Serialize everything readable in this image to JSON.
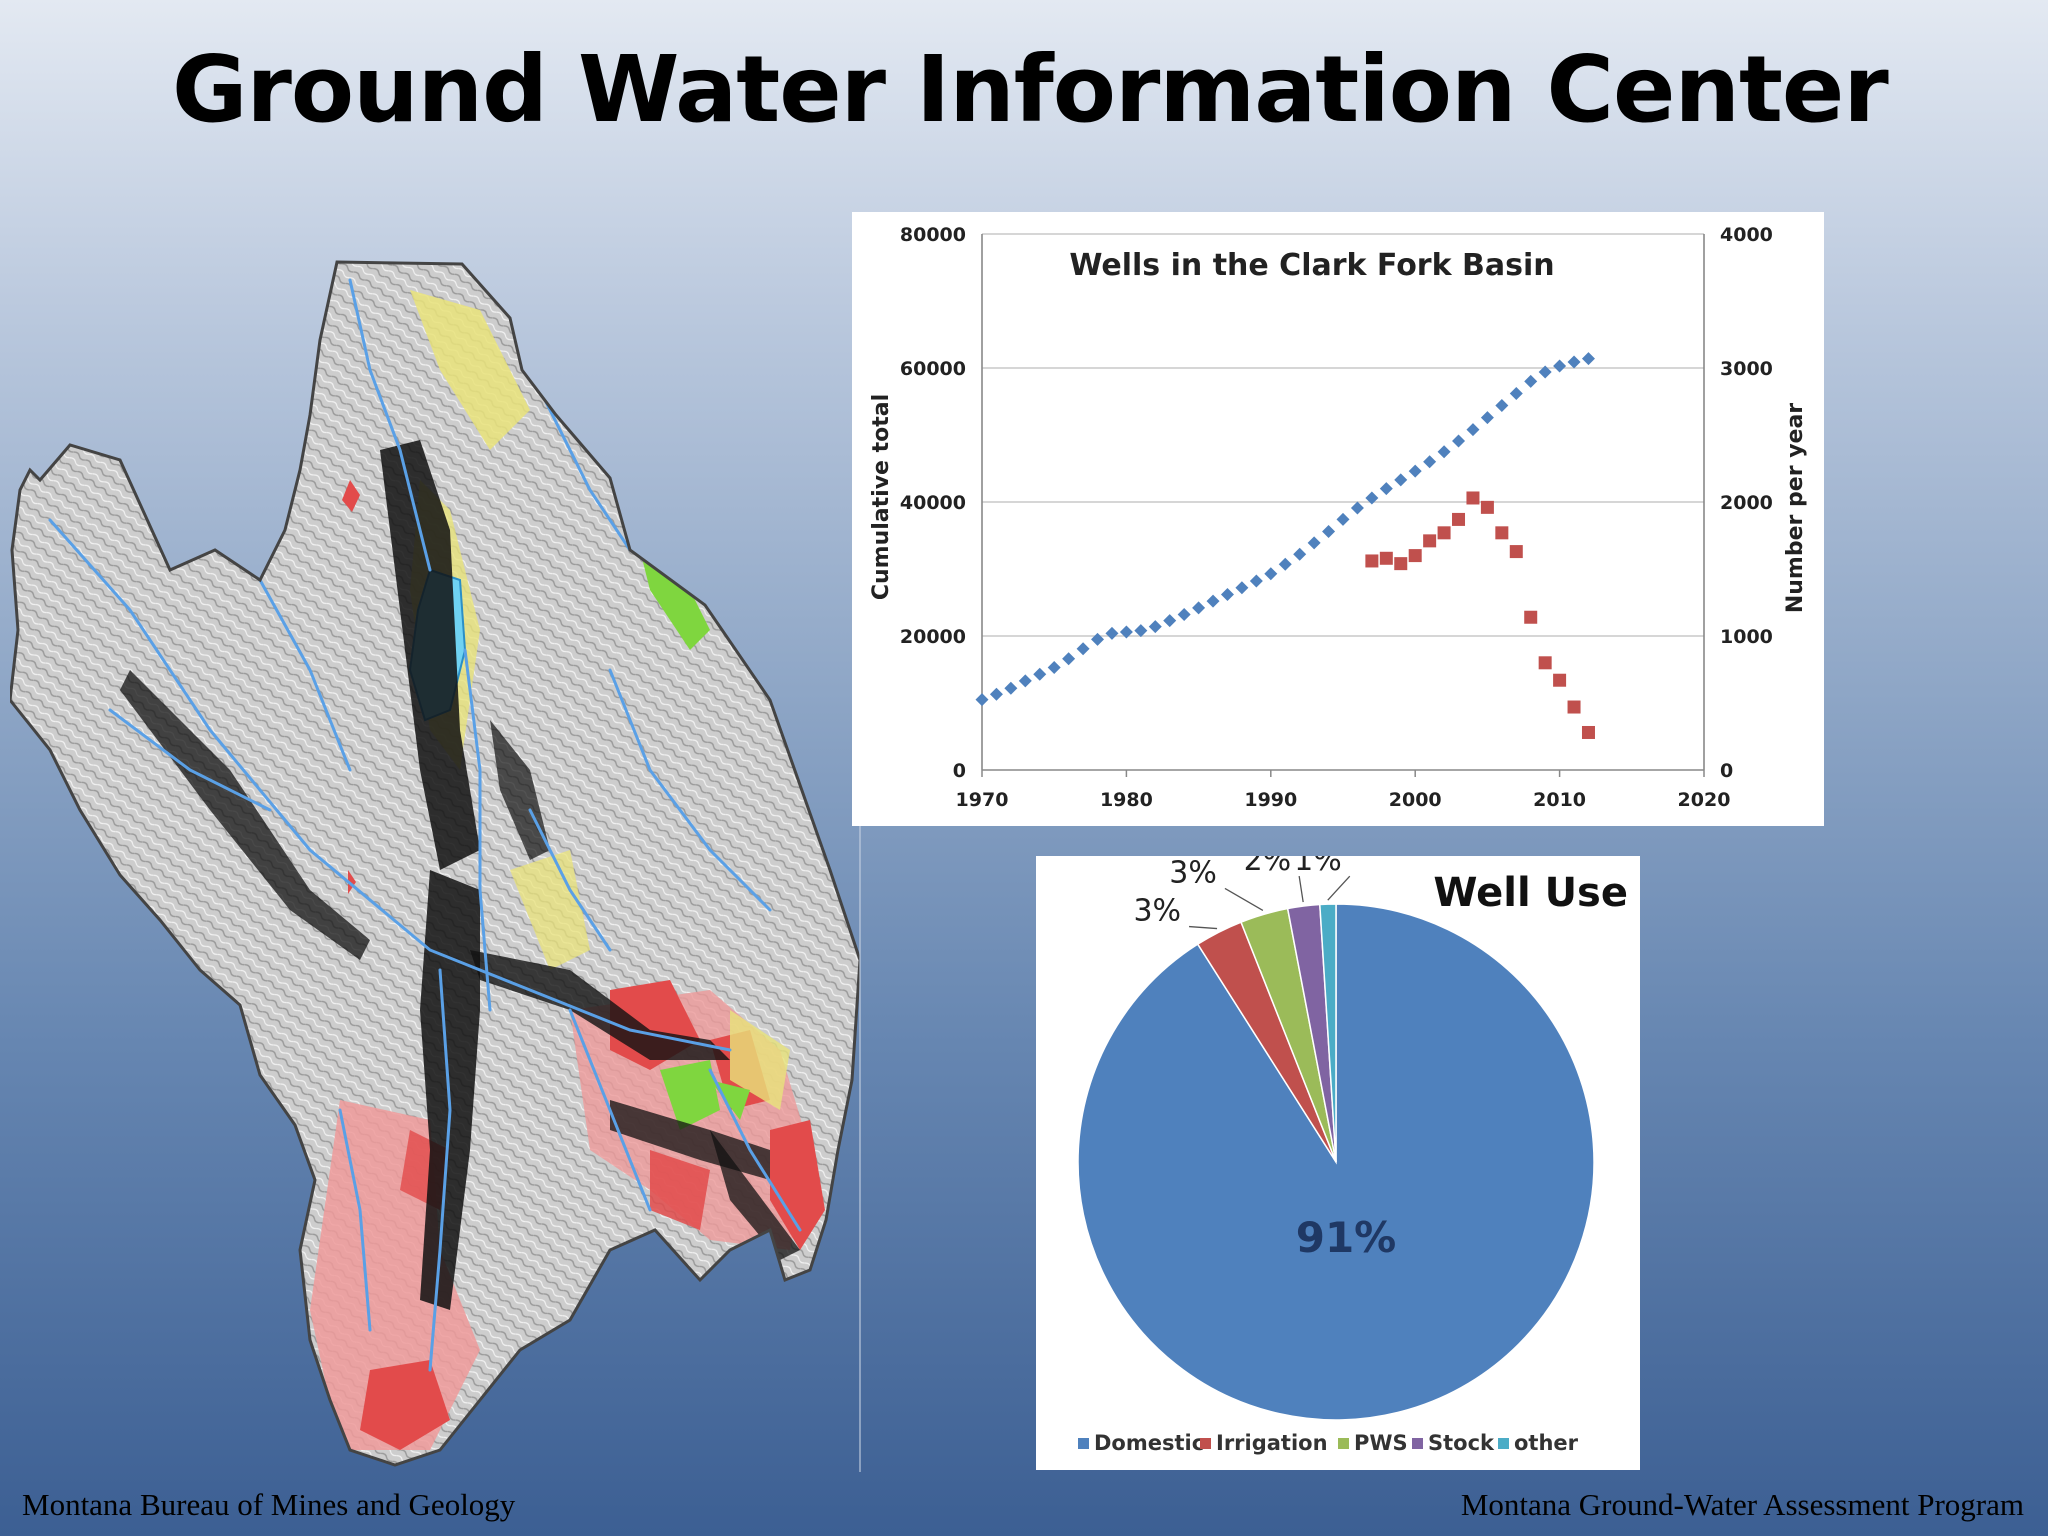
{
  "slide": {
    "title": "Ground Water Information Center",
    "footer_left": "Montana Bureau of Mines and Geology",
    "footer_right": "Montana Ground-Water Assessment Program"
  },
  "map": {
    "icon": "basin-relief-map-icon",
    "colors": {
      "relief": "#c9c9c9",
      "wells": "#000000",
      "lake": "#6fd2f2",
      "streams": "#5aa0e6",
      "zone_yellow": "#e9e37a",
      "zone_red": "#e24b4b",
      "zone_pink": "#ee9a9a",
      "zone_green": "#7fd63f"
    }
  },
  "chart_data": [
    {
      "type": "scatter",
      "title": "Wells in the Clark Fork Basin",
      "xlabel": "",
      "ylabel": "Cumulative total",
      "y2label": "Number per year",
      "xlim": [
        1970,
        2020
      ],
      "ylim": [
        0,
        80000
      ],
      "y2lim": [
        0,
        4000
      ],
      "x_ticks": [
        1970,
        1980,
        1990,
        2000,
        2010,
        2020
      ],
      "y_ticks": [
        0,
        20000,
        40000,
        60000,
        80000
      ],
      "y2_ticks": [
        0,
        1000,
        2000,
        3000,
        4000
      ],
      "grid": true,
      "series": [
        {
          "axis": "left",
          "marker": "diamond",
          "color": "#4f81bd",
          "x": [
            1970,
            1971,
            1972,
            1973,
            1974,
            1975,
            1976,
            1977,
            1978,
            1979,
            1980,
            1981,
            1982,
            1983,
            1984,
            1985,
            1986,
            1987,
            1988,
            1989,
            1990,
            1991,
            1992,
            1993,
            1994,
            1995,
            1996,
            1997,
            1998,
            1999,
            2000,
            2001,
            2002,
            2003,
            2004,
            2005,
            2006,
            2007,
            2008,
            2009,
            2010,
            2011,
            2012
          ],
          "y": [
            10500,
            11300,
            12200,
            13300,
            14300,
            15300,
            16600,
            18100,
            19500,
            20400,
            20600,
            20800,
            21400,
            22300,
            23200,
            24200,
            25200,
            26200,
            27200,
            28200,
            29300,
            30700,
            32200,
            33900,
            35600,
            37400,
            39100,
            40600,
            42000,
            43300,
            44600,
            46000,
            47500,
            49100,
            50800,
            52600,
            54400,
            56200,
            58000,
            59400,
            60300,
            60900,
            61400
          ]
        },
        {
          "axis": "right",
          "marker": "square",
          "color": "#c0504d",
          "x": [
            1997,
            1998,
            1999,
            2000,
            2001,
            2002,
            2003,
            2004,
            2005,
            2006,
            2007,
            2008,
            2009,
            2010,
            2011,
            2012
          ],
          "y": [
            1560,
            1580,
            1540,
            1600,
            1710,
            1770,
            1870,
            2030,
            1960,
            1770,
            1630,
            1140,
            800,
            670,
            470,
            280
          ]
        }
      ]
    },
    {
      "type": "pie",
      "title": "Well Use",
      "legend": "bottom",
      "center_label": "91%",
      "slices": [
        {
          "name": "Domestic",
          "value": 91,
          "label": "",
          "color": "#4f81bd"
        },
        {
          "name": "Irrigation",
          "value": 3,
          "label": "3%",
          "color": "#c0504d"
        },
        {
          "name": "PWS",
          "value": 3,
          "label": "3%",
          "color": "#9bbb59"
        },
        {
          "name": "Stock",
          "value": 2,
          "label": "2%",
          "color": "#8064a2"
        },
        {
          "name": "other",
          "value": 1,
          "label": "1%",
          "color": "#4bacc6"
        }
      ]
    }
  ]
}
